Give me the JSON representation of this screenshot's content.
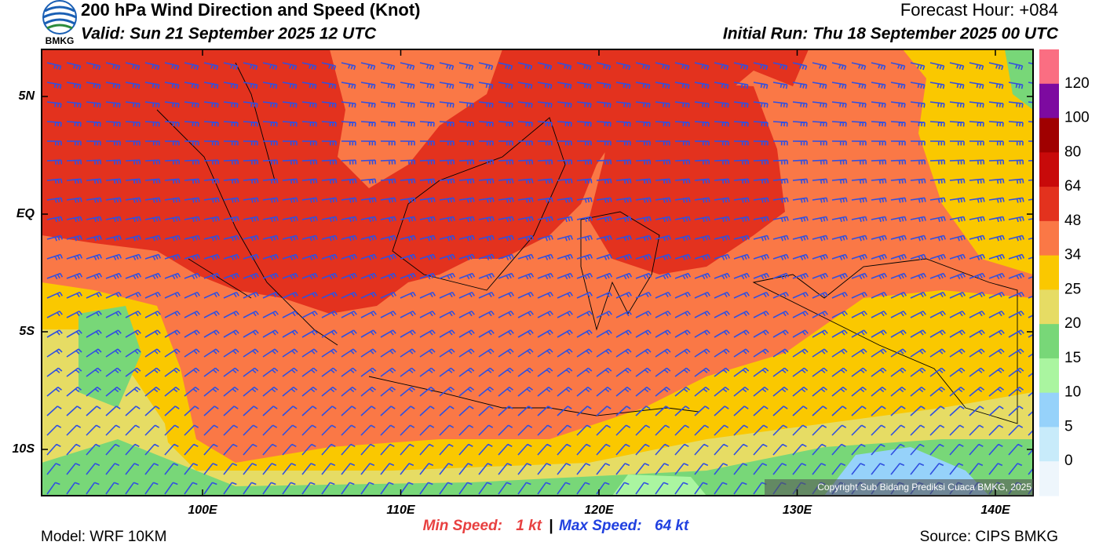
{
  "header": {
    "logo_text": "BMKG",
    "title": "200 hPa Wind Direction and Speed (Knot)",
    "valid": "Valid: Sun 21 September 2025 12 UTC",
    "forecast_hour": "Forecast Hour: +084",
    "initial_run": "Initial Run: Thu 18 September 2025 00 UTC"
  },
  "map": {
    "lat_labels": [
      "5N",
      "EQ",
      "5S",
      "10S"
    ],
    "lon_labels": [
      "100E",
      "110E",
      "120E",
      "130E",
      "140E"
    ],
    "copyright": "Copyright Sub Bidang Prediksi Cuaca BMKG, 2025"
  },
  "colorbar": {
    "labels": [
      120,
      100,
      80,
      64,
      48,
      34,
      25,
      20,
      15,
      10,
      5,
      0
    ],
    "colors": [
      "#fa6e82",
      "#7d0aa0",
      "#a00000",
      "#c80a0a",
      "#e3321e",
      "#fa7846",
      "#fac800",
      "#e6dc64",
      "#78d778",
      "#aaf5a0",
      "#96d2fa",
      "#c8ebfa",
      "#eef6fc"
    ]
  },
  "footer": {
    "min_label": "Min Speed:",
    "min_value": "1 kt",
    "separator": "|",
    "max_label": "Max Speed:",
    "max_value": "64 kt",
    "model": "Model: WRF 10KM",
    "source": "Source: CIPS BMKG"
  }
}
